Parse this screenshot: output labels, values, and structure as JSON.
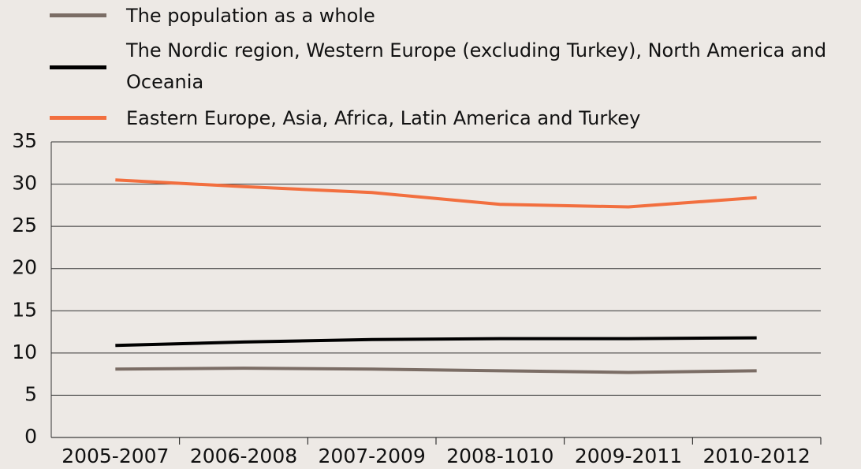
{
  "chart_data": {
    "type": "line",
    "categories": [
      "2005-2007",
      "2006-2008",
      "2007-2009",
      "2008-1010",
      "2009-2011",
      "2010-2012"
    ],
    "series": [
      {
        "name": "The population as a whole",
        "color": "#7b6d65",
        "values": [
          8.1,
          8.2,
          8.1,
          7.9,
          7.7,
          7.9
        ]
      },
      {
        "name": "The Nordic region, Western Europe (excluding Turkey), North America and Oceania",
        "color": "#000000",
        "values": [
          10.9,
          11.3,
          11.6,
          11.7,
          11.7,
          11.8
        ]
      },
      {
        "name": "Eastern Europe, Asia, Africa, Latin America and Turkey",
        "color": "#f26f3f",
        "values": [
          30.5,
          29.7,
          29.0,
          27.6,
          27.3,
          28.4
        ]
      }
    ],
    "ylim": [
      0,
      35
    ],
    "yticks": [
      0,
      5,
      10,
      15,
      20,
      25,
      30,
      35
    ],
    "grid": true
  }
}
